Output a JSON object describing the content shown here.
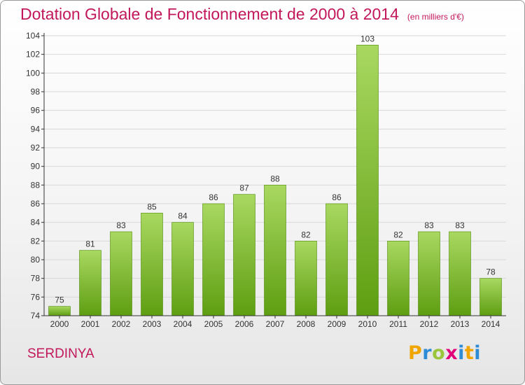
{
  "header": {
    "title": "Dotation Globale de Fonctionnement de 2000 à 2014",
    "subtitle": "(en milliers d'€)"
  },
  "footer": {
    "place": "SERDINYA",
    "logo_letters": [
      "P",
      "r",
      "o",
      "x",
      "i",
      "t",
      "i"
    ],
    "logo_colors": [
      "#f0a500",
      "#2e8bd6",
      "#9bc53d",
      "#e2007a",
      "#2e8bd6",
      "#f0a500",
      "#2e8bd6"
    ]
  },
  "colors": {
    "bar_top": "#a9d860",
    "bar_bottom": "#5e9e12",
    "bar_edge": "#4f8a0c",
    "grid": "#d8d8d8",
    "axis": "#333333",
    "text": "#333333"
  },
  "chart_data": {
    "type": "bar",
    "title": "Dotation Globale de Fonctionnement de 2000 à 2014",
    "xlabel": "",
    "ylabel": "",
    "ylim": [
      74,
      104
    ],
    "yticks": [
      74,
      76,
      78,
      80,
      82,
      84,
      86,
      88,
      90,
      92,
      94,
      96,
      98,
      100,
      102,
      104
    ],
    "grid": true,
    "categories": [
      "2000",
      "2001",
      "2002",
      "2003",
      "2004",
      "2005",
      "2006",
      "2007",
      "2008",
      "2009",
      "2010",
      "2011",
      "2012",
      "2013",
      "2014"
    ],
    "values": [
      75,
      81,
      83,
      85,
      84,
      86,
      87,
      88,
      82,
      86,
      103,
      82,
      83,
      83,
      78
    ]
  }
}
